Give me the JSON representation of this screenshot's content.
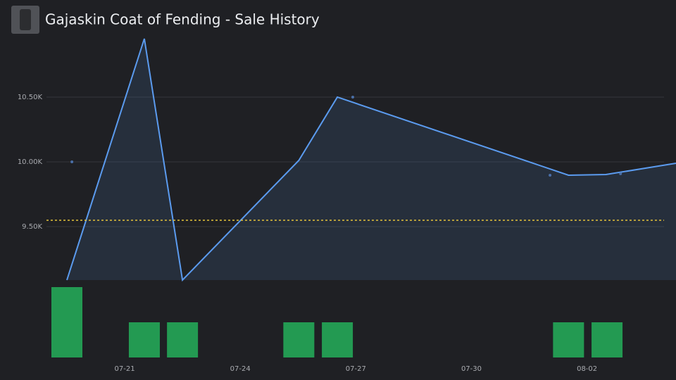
{
  "chart_data": [
    {
      "type": "line",
      "title": "Gajaskin Coat of Fending - Sale History",
      "xlim": [
        18.97,
        35.31
      ],
      "ylim": [
        9087,
        10951
      ],
      "yticks": [
        {
          "value": 9500,
          "label": "9.50K"
        },
        {
          "value": 10000,
          "label": "10.00K"
        },
        {
          "value": 10500,
          "label": "10.50K"
        }
      ],
      "grid": true,
      "series": [
        {
          "type": "area",
          "color": "#5b9bef",
          "x": [
            19.5,
            21.51,
            22.5,
            25.52,
            26.52,
            32.52,
            33.49,
            35.31
          ],
          "values": [
            9087,
            10951,
            9087,
            10011,
            10500,
            9897,
            9902,
            9989
          ]
        },
        {
          "type": "scatter",
          "color": "#4a6fa8",
          "x": [
            19.63,
            26.92,
            32.04,
            33.87
          ],
          "values": [
            10000,
            10500,
            9897,
            9908
          ]
        }
      ],
      "average": {
        "value": 9549,
        "color": "#e3c23a"
      }
    },
    {
      "type": "bar",
      "xlim": [
        18.97,
        35.31
      ],
      "ylim": [
        0,
        2
      ],
      "color": "#239a52",
      "x": [
        19.5,
        21.51,
        22.5,
        25.52,
        26.52,
        32.52,
        33.52
      ],
      "values": [
        2,
        1,
        1,
        1,
        1,
        1,
        1
      ],
      "xticks": [
        {
          "value": 21,
          "label": "07-21"
        },
        {
          "value": 24,
          "label": "07-24"
        },
        {
          "value": 27,
          "label": "07-27"
        },
        {
          "value": 30,
          "label": "07-30"
        },
        {
          "value": 33,
          "label": "08-02"
        }
      ]
    }
  ]
}
